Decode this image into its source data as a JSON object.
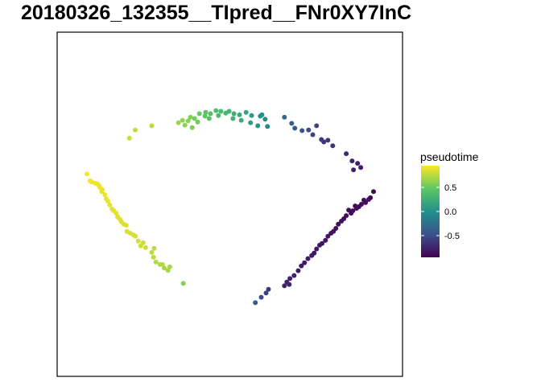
{
  "chart_data": {
    "type": "scatter",
    "title": "20180326_132355__TIpred__FNr0XY7InC",
    "xlabel": "",
    "ylabel": "",
    "grid": false,
    "legend_position": "right",
    "colorbar": {
      "title": "pseudotime",
      "min": -0.95,
      "max": 0.95,
      "ticks": [
        0.5,
        0.0,
        -0.5
      ],
      "tick_labels": [
        "0.5",
        "0.0",
        "-0.5"
      ],
      "colors": [
        "#440154",
        "#3b528b",
        "#21908c",
        "#5dc863",
        "#fde725"
      ]
    },
    "xlim": [
      0,
      100
    ],
    "ylim": [
      0,
      100
    ],
    "points": [
      {
        "x": 8.6,
        "y": 58.8,
        "c": 0.93
      },
      {
        "x": 9.5,
        "y": 56.8,
        "c": 0.93
      },
      {
        "x": 10.0,
        "y": 56.5,
        "c": 0.92
      },
      {
        "x": 11.0,
        "y": 56.1,
        "c": 0.92
      },
      {
        "x": 11.7,
        "y": 55.9,
        "c": 0.92
      },
      {
        "x": 12.1,
        "y": 55.4,
        "c": 0.91
      },
      {
        "x": 12.4,
        "y": 54.9,
        "c": 0.91
      },
      {
        "x": 12.9,
        "y": 53.7,
        "c": 0.9
      },
      {
        "x": 13.1,
        "y": 54.2,
        "c": 0.9
      },
      {
        "x": 13.8,
        "y": 52.8,
        "c": 0.9
      },
      {
        "x": 14.2,
        "y": 51.6,
        "c": 0.89
      },
      {
        "x": 14.7,
        "y": 50.9,
        "c": 0.89
      },
      {
        "x": 15.2,
        "y": 49.8,
        "c": 0.88
      },
      {
        "x": 15.9,
        "y": 48.6,
        "c": 0.88
      },
      {
        "x": 16.4,
        "y": 48.1,
        "c": 0.87
      },
      {
        "x": 17.1,
        "y": 47.4,
        "c": 0.87
      },
      {
        "x": 17.5,
        "y": 46.3,
        "c": 0.86
      },
      {
        "x": 18.2,
        "y": 45.6,
        "c": 0.86
      },
      {
        "x": 18.6,
        "y": 44.9,
        "c": 0.86
      },
      {
        "x": 19.3,
        "y": 44.2,
        "c": 0.85
      },
      {
        "x": 20.0,
        "y": 43.9,
        "c": 0.85
      },
      {
        "x": 20.2,
        "y": 42.1,
        "c": 0.84
      },
      {
        "x": 21.2,
        "y": 41.6,
        "c": 0.84
      },
      {
        "x": 22.1,
        "y": 41.1,
        "c": 0.83
      },
      {
        "x": 22.6,
        "y": 40.7,
        "c": 0.83
      },
      {
        "x": 23.5,
        "y": 39.3,
        "c": 0.82
      },
      {
        "x": 24.2,
        "y": 37.9,
        "c": 0.81
      },
      {
        "x": 24.9,
        "y": 38.8,
        "c": 0.81
      },
      {
        "x": 25.6,
        "y": 37.4,
        "c": 0.8
      },
      {
        "x": 27.4,
        "y": 36.0,
        "c": 0.77
      },
      {
        "x": 27.9,
        "y": 34.6,
        "c": 0.76
      },
      {
        "x": 28.1,
        "y": 37.2,
        "c": 0.76
      },
      {
        "x": 28.6,
        "y": 33.2,
        "c": 0.74
      },
      {
        "x": 30.5,
        "y": 32.5,
        "c": 0.72
      },
      {
        "x": 31.0,
        "y": 31.5,
        "c": 0.71
      },
      {
        "x": 32.1,
        "y": 30.8,
        "c": 0.7
      },
      {
        "x": 32.6,
        "y": 31.8,
        "c": 0.7
      },
      {
        "x": 29.8,
        "y": 32.5,
        "c": 0.73
      },
      {
        "x": 36.5,
        "y": 27.0,
        "c": 0.6
      },
      {
        "x": 20.9,
        "y": 69.2,
        "c": 0.8
      },
      {
        "x": 22.6,
        "y": 71.6,
        "c": 0.78
      },
      {
        "x": 27.4,
        "y": 72.8,
        "c": 0.75
      },
      {
        "x": 35.1,
        "y": 73.7,
        "c": 0.65
      },
      {
        "x": 36.3,
        "y": 74.4,
        "c": 0.63
      },
      {
        "x": 37.0,
        "y": 73.0,
        "c": 0.62
      },
      {
        "x": 37.9,
        "y": 74.2,
        "c": 0.6
      },
      {
        "x": 38.6,
        "y": 75.3,
        "c": 0.58
      },
      {
        "x": 39.1,
        "y": 72.3,
        "c": 0.57
      },
      {
        "x": 39.8,
        "y": 74.9,
        "c": 0.55
      },
      {
        "x": 40.7,
        "y": 73.9,
        "c": 0.53
      },
      {
        "x": 41.2,
        "y": 76.3,
        "c": 0.5
      },
      {
        "x": 42.8,
        "y": 75.6,
        "c": 0.46
      },
      {
        "x": 43.0,
        "y": 76.7,
        "c": 0.45
      },
      {
        "x": 44.0,
        "y": 74.9,
        "c": 0.42
      },
      {
        "x": 44.4,
        "y": 76.3,
        "c": 0.41
      },
      {
        "x": 46.0,
        "y": 77.2,
        "c": 0.38
      },
      {
        "x": 46.7,
        "y": 75.8,
        "c": 0.36
      },
      {
        "x": 47.4,
        "y": 77.0,
        "c": 0.35
      },
      {
        "x": 48.8,
        "y": 76.5,
        "c": 0.31
      },
      {
        "x": 49.8,
        "y": 77.0,
        "c": 0.29
      },
      {
        "x": 51.2,
        "y": 76.3,
        "c": 0.25
      },
      {
        "x": 50.9,
        "y": 74.9,
        "c": 0.26
      },
      {
        "x": 52.8,
        "y": 76.0,
        "c": 0.21
      },
      {
        "x": 53.3,
        "y": 74.4,
        "c": 0.2
      },
      {
        "x": 54.7,
        "y": 76.7,
        "c": 0.15
      },
      {
        "x": 56.0,
        "y": 73.7,
        "c": 0.1
      },
      {
        "x": 56.3,
        "y": 75.8,
        "c": 0.08
      },
      {
        "x": 58.8,
        "y": 75.6,
        "c": 0.02
      },
      {
        "x": 59.3,
        "y": 76.0,
        "c": 0.0
      },
      {
        "x": 60.2,
        "y": 74.7,
        "c": -0.02
      },
      {
        "x": 58.1,
        "y": 72.8,
        "c": 0.03
      },
      {
        "x": 60.9,
        "y": 72.6,
        "c": -0.04
      },
      {
        "x": 65.8,
        "y": 75.3,
        "c": -0.3
      },
      {
        "x": 67.9,
        "y": 73.5,
        "c": -0.38
      },
      {
        "x": 68.8,
        "y": 72.1,
        "c": -0.42
      },
      {
        "x": 70.9,
        "y": 71.4,
        "c": -0.48
      },
      {
        "x": 72.8,
        "y": 71.6,
        "c": -0.52
      },
      {
        "x": 74.0,
        "y": 70.2,
        "c": -0.55
      },
      {
        "x": 75.1,
        "y": 72.8,
        "c": -0.56
      },
      {
        "x": 76.5,
        "y": 68.8,
        "c": -0.6
      },
      {
        "x": 77.2,
        "y": 68.1,
        "c": -0.62
      },
      {
        "x": 78.4,
        "y": 68.6,
        "c": -0.64
      },
      {
        "x": 79.8,
        "y": 67.0,
        "c": -0.66
      },
      {
        "x": 83.7,
        "y": 64.7,
        "c": -0.72
      },
      {
        "x": 85.4,
        "y": 62.6,
        "c": -0.75
      },
      {
        "x": 87.0,
        "y": 61.9,
        "c": -0.77
      },
      {
        "x": 87.9,
        "y": 60.7,
        "c": -0.78
      },
      {
        "x": 85.8,
        "y": 60.0,
        "c": -0.76
      },
      {
        "x": 91.6,
        "y": 53.7,
        "c": -0.9
      },
      {
        "x": 90.7,
        "y": 51.9,
        "c": -0.9
      },
      {
        "x": 90.2,
        "y": 51.4,
        "c": -0.9
      },
      {
        "x": 89.3,
        "y": 50.5,
        "c": -0.89
      },
      {
        "x": 88.8,
        "y": 51.2,
        "c": -0.89
      },
      {
        "x": 88.1,
        "y": 50.0,
        "c": -0.89
      },
      {
        "x": 87.4,
        "y": 49.3,
        "c": -0.89
      },
      {
        "x": 86.7,
        "y": 48.8,
        "c": -0.88
      },
      {
        "x": 86.3,
        "y": 49.5,
        "c": -0.88
      },
      {
        "x": 85.6,
        "y": 48.1,
        "c": -0.88
      },
      {
        "x": 85.1,
        "y": 47.4,
        "c": -0.88
      },
      {
        "x": 84.4,
        "y": 48.3,
        "c": -0.87
      },
      {
        "x": 83.7,
        "y": 46.7,
        "c": -0.87
      },
      {
        "x": 83.0,
        "y": 45.8,
        "c": -0.87
      },
      {
        "x": 82.3,
        "y": 45.1,
        "c": -0.86
      },
      {
        "x": 81.4,
        "y": 44.2,
        "c": -0.86
      },
      {
        "x": 80.7,
        "y": 43.0,
        "c": -0.86
      },
      {
        "x": 80.0,
        "y": 42.1,
        "c": -0.85
      },
      {
        "x": 79.3,
        "y": 41.6,
        "c": -0.85
      },
      {
        "x": 78.4,
        "y": 40.7,
        "c": -0.84
      },
      {
        "x": 77.7,
        "y": 39.5,
        "c": -0.84
      },
      {
        "x": 76.7,
        "y": 38.6,
        "c": -0.83
      },
      {
        "x": 76.0,
        "y": 38.1,
        "c": -0.83
      },
      {
        "x": 75.1,
        "y": 37.0,
        "c": -0.82
      },
      {
        "x": 74.4,
        "y": 35.8,
        "c": -0.82
      },
      {
        "x": 73.7,
        "y": 35.1,
        "c": -0.81
      },
      {
        "x": 72.6,
        "y": 34.2,
        "c": -0.8
      },
      {
        "x": 71.6,
        "y": 33.0,
        "c": -0.8
      },
      {
        "x": 70.7,
        "y": 32.1,
        "c": -0.79
      },
      {
        "x": 69.8,
        "y": 30.7,
        "c": -0.78
      },
      {
        "x": 68.6,
        "y": 29.3,
        "c": -0.77
      },
      {
        "x": 67.4,
        "y": 28.4,
        "c": -0.76
      },
      {
        "x": 66.5,
        "y": 27.4,
        "c": -0.75
      },
      {
        "x": 65.8,
        "y": 26.3,
        "c": -0.74
      },
      {
        "x": 67.2,
        "y": 26.7,
        "c": -0.74
      },
      {
        "x": 61.2,
        "y": 25.3,
        "c": -0.6
      },
      {
        "x": 60.5,
        "y": 24.2,
        "c": -0.57
      },
      {
        "x": 59.1,
        "y": 23.0,
        "c": -0.5
      },
      {
        "x": 57.4,
        "y": 21.4,
        "c": -0.42
      }
    ]
  }
}
